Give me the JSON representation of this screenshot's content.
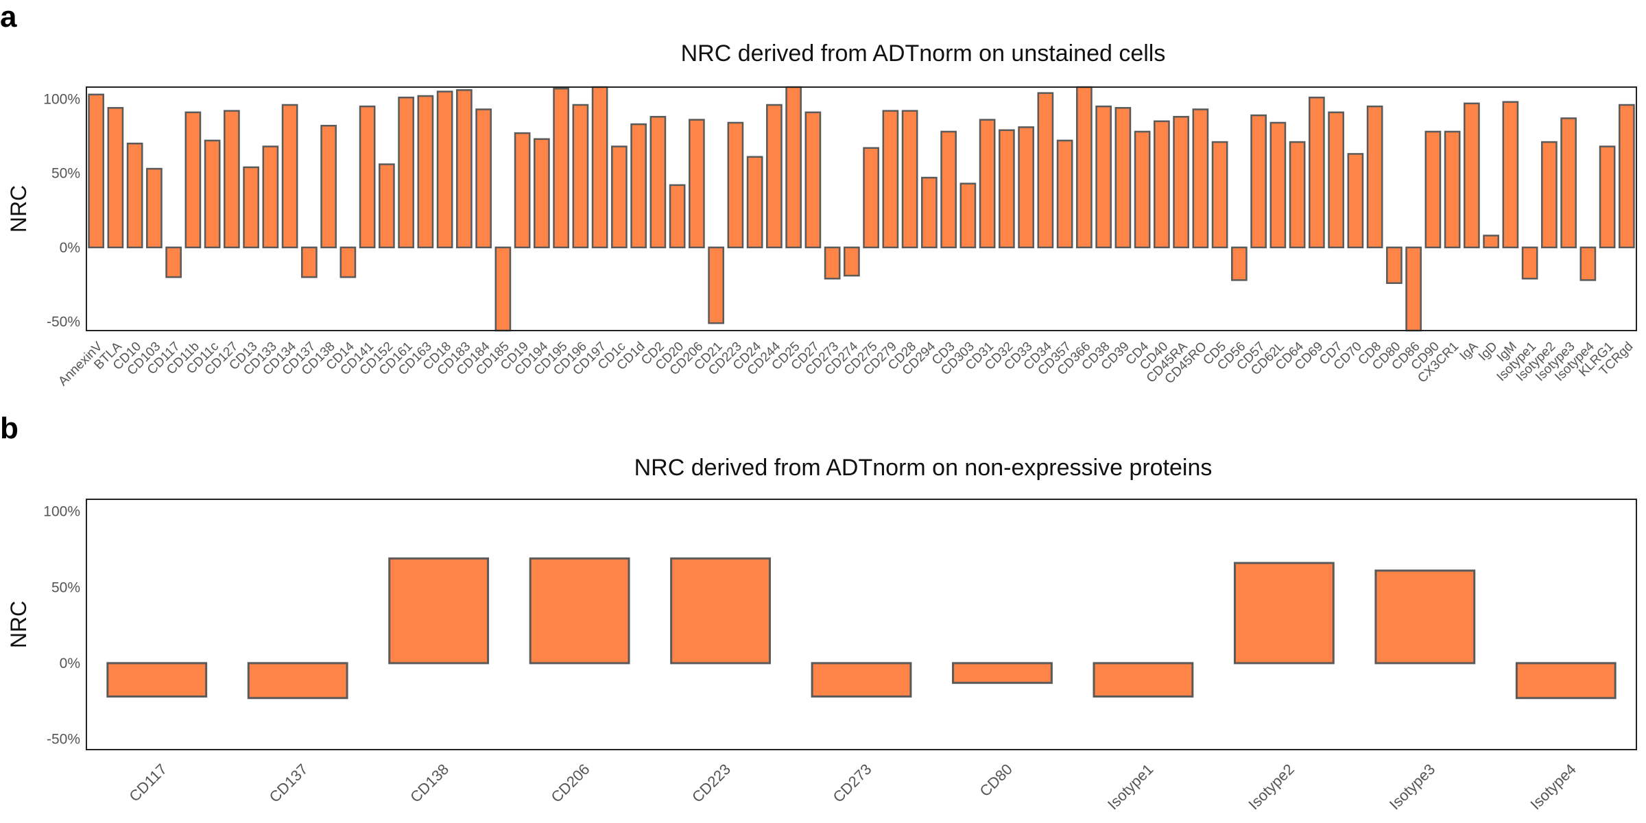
{
  "panels": {
    "a": "a",
    "b": "b"
  },
  "chart_data": [
    {
      "type": "bar",
      "title": "NRC derived from ADTnorm on unstained cells",
      "xlabel": "",
      "ylabel": "NRC",
      "ylim": [
        -56,
        108
      ],
      "yticks": [
        "-50%",
        "0%",
        "50%",
        "100%"
      ],
      "ytick_values": [
        -50,
        0,
        50,
        100
      ],
      "bar_color": "#FF8447",
      "bar_edge": "#5a5a5a",
      "categories": [
        "AnnexinV",
        "BTLA",
        "CD10",
        "CD103",
        "CD117",
        "CD11b",
        "CD11c",
        "CD127",
        "CD13",
        "CD133",
        "CD134",
        "CD137",
        "CD138",
        "CD14",
        "CD141",
        "CD152",
        "CD161",
        "CD163",
        "CD18",
        "CD183",
        "CD184",
        "CD185",
        "CD19",
        "CD194",
        "CD195",
        "CD196",
        "CD197",
        "CD1c",
        "CD1d",
        "CD2",
        "CD20",
        "CD206",
        "CD21",
        "CD223",
        "CD24",
        "CD244",
        "CD25",
        "CD27",
        "CD273",
        "CD274",
        "CD275",
        "CD279",
        "CD28",
        "CD294",
        "CD3",
        "CD303",
        "CD31",
        "CD32",
        "CD33",
        "CD34",
        "CD357",
        "CD366",
        "CD38",
        "CD39",
        "CD4",
        "CD40",
        "CD45RA",
        "CD45RO",
        "CD5",
        "CD56",
        "CD57",
        "CD62L",
        "CD64",
        "CD69",
        "CD7",
        "CD70",
        "CD8",
        "CD80",
        "CD86",
        "CD90",
        "CX3CR1",
        "IgA",
        "IgD",
        "IgM",
        "Isotype1",
        "Isotype2",
        "Isotype3",
        "Isotype4",
        "KLRG1",
        "TCRgd"
      ],
      "values": [
        103,
        94,
        70,
        53,
        -20,
        91,
        72,
        92,
        54,
        68,
        96,
        -20,
        82,
        -20,
        95,
        56,
        101,
        102,
        105,
        106,
        93,
        -58,
        77,
        73,
        107,
        96,
        110,
        68,
        83,
        88,
        42,
        86,
        -51,
        84,
        61,
        96,
        110,
        91,
        -21,
        -19,
        67,
        92,
        92,
        47,
        78,
        43,
        86,
        79,
        81,
        104,
        72,
        110,
        95,
        94,
        78,
        85,
        88,
        93,
        71,
        -22,
        89,
        84,
        71,
        101,
        91,
        63,
        95,
        -24,
        -58,
        78,
        78,
        97,
        8,
        98,
        -21,
        71,
        87,
        -22,
        68,
        96
      ]
    },
    {
      "type": "bar",
      "title": "NRC derived from ADTnorm on non-expressive proteins",
      "xlabel": "",
      "ylabel": "NRC",
      "ylim": [
        -57,
        108
      ],
      "yticks": [
        "-50%",
        "0%",
        "50%",
        "100%"
      ],
      "ytick_values": [
        -50,
        0,
        50,
        100
      ],
      "bar_color": "#FF8447",
      "bar_edge": "#5a5a5a",
      "categories": [
        "CD117",
        "CD137",
        "CD138",
        "CD206",
        "CD223",
        "CD273",
        "CD80",
        "Isotype1",
        "Isotype2",
        "Isotype3",
        "Isotype4"
      ],
      "values": [
        -22,
        -23,
        69,
        69,
        69,
        -22,
        -13,
        -22,
        66,
        61,
        -23
      ]
    }
  ]
}
